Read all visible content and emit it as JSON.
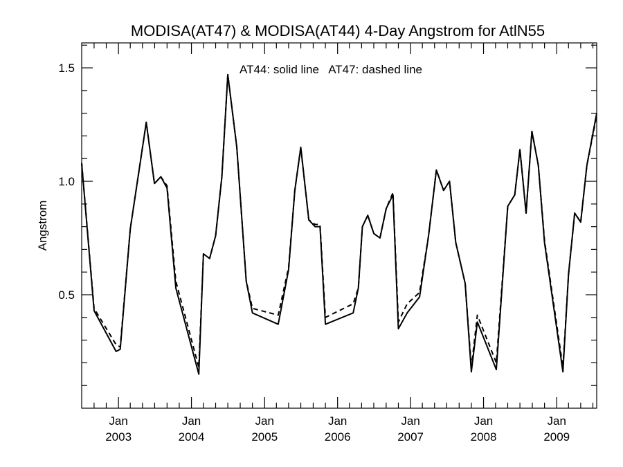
{
  "chart_data": {
    "type": "line",
    "title": "MODISA(AT47) & MODISA(AT44) 4-Day Angstrom for AtlN55",
    "annotation": "AT44: solid line   AT47: dashed line",
    "xlabel": "",
    "ylabel": "Angstrom",
    "ylim": [
      0.0,
      1.61
    ],
    "xlim": [
      "2002-07-01",
      "2009-07-20"
    ],
    "grid": false,
    "yticks": [
      {
        "value": 0.5,
        "label": "0.5"
      },
      {
        "value": 1.0,
        "label": "1.0"
      },
      {
        "value": 1.5,
        "label": "1.5"
      }
    ],
    "y_minor_ticks": [
      0.1,
      0.2,
      0.3,
      0.4,
      0.6,
      0.7,
      0.8,
      0.9,
      1.1,
      1.2,
      1.3,
      1.4,
      1.6
    ],
    "xticks": [
      {
        "date": "2003-01-01",
        "month": "Jan",
        "year": "2003"
      },
      {
        "date": "2004-01-01",
        "month": "Jan",
        "year": "2004"
      },
      {
        "date": "2005-01-01",
        "month": "Jan",
        "year": "2005"
      },
      {
        "date": "2006-01-01",
        "month": "Jan",
        "year": "2006"
      },
      {
        "date": "2007-01-01",
        "month": "Jan",
        "year": "2007"
      },
      {
        "date": "2008-01-01",
        "month": "Jan",
        "year": "2008"
      },
      {
        "date": "2009-01-01",
        "month": "Jan",
        "year": "2009"
      }
    ],
    "x_minor_ticks": [
      "2002-09-01",
      "2002-11-01",
      "2003-03-01",
      "2003-05-01",
      "2003-07-01",
      "2003-09-01",
      "2003-11-01",
      "2004-03-01",
      "2004-05-01",
      "2004-07-01",
      "2004-09-01",
      "2004-11-01",
      "2005-03-01",
      "2005-05-01",
      "2005-07-01",
      "2005-09-01",
      "2005-11-01",
      "2006-03-01",
      "2006-05-01",
      "2006-07-01",
      "2006-09-01",
      "2006-11-01",
      "2007-03-01",
      "2007-05-01",
      "2007-07-01",
      "2007-09-01",
      "2007-11-01",
      "2008-03-01",
      "2008-05-01",
      "2008-07-01",
      "2008-09-01",
      "2008-11-01",
      "2009-03-01",
      "2009-05-01",
      "2009-07-01"
    ],
    "series": [
      {
        "name": "AT44",
        "style": "solid",
        "points": [
          [
            "2002-07-01",
            1.08
          ],
          [
            "2002-09-01",
            0.43
          ],
          [
            "2002-12-20",
            0.25
          ],
          [
            "2003-01-10",
            0.26
          ],
          [
            "2003-03-01",
            0.79
          ],
          [
            "2003-05-20",
            1.26
          ],
          [
            "2003-06-30",
            0.99
          ],
          [
            "2003-08-01",
            1.02
          ],
          [
            "2003-09-01",
            0.97
          ],
          [
            "2003-10-15",
            0.53
          ],
          [
            "2004-02-07",
            0.15
          ],
          [
            "2004-03-01",
            0.68
          ],
          [
            "2004-04-01",
            0.66
          ],
          [
            "2004-05-01",
            0.76
          ],
          [
            "2004-06-01",
            1.02
          ],
          [
            "2004-07-01",
            1.47
          ],
          [
            "2004-08-15",
            1.15
          ],
          [
            "2004-10-01",
            0.56
          ],
          [
            "2004-11-01",
            0.42
          ],
          [
            "2005-03-10",
            0.37
          ],
          [
            "2005-05-01",
            0.61
          ],
          [
            "2005-06-01",
            0.96
          ],
          [
            "2005-07-01",
            1.15
          ],
          [
            "2005-08-10",
            0.83
          ],
          [
            "2005-09-10",
            0.8
          ],
          [
            "2005-10-05",
            0.8
          ],
          [
            "2005-11-01",
            0.37
          ],
          [
            "2006-03-20",
            0.42
          ],
          [
            "2006-04-15",
            0.53
          ],
          [
            "2006-05-05",
            0.8
          ],
          [
            "2006-06-01",
            0.85
          ],
          [
            "2006-07-01",
            0.77
          ],
          [
            "2006-08-01",
            0.75
          ],
          [
            "2006-09-01",
            0.88
          ],
          [
            "2006-10-05",
            0.94
          ],
          [
            "2006-11-01",
            0.35
          ],
          [
            "2006-12-15",
            0.42
          ],
          [
            "2007-02-15",
            0.49
          ],
          [
            "2007-04-01",
            0.76
          ],
          [
            "2007-05-10",
            1.05
          ],
          [
            "2007-06-15",
            0.96
          ],
          [
            "2007-07-15",
            1.0
          ],
          [
            "2007-08-15",
            0.73
          ],
          [
            "2007-10-01",
            0.55
          ],
          [
            "2007-11-01",
            0.16
          ],
          [
            "2007-12-01",
            0.38
          ],
          [
            "2008-03-05",
            0.17
          ],
          [
            "2008-05-01",
            0.89
          ],
          [
            "2008-06-05",
            0.94
          ],
          [
            "2008-07-01",
            1.14
          ],
          [
            "2008-08-01",
            0.86
          ],
          [
            "2008-08-30",
            1.22
          ],
          [
            "2008-10-01",
            1.07
          ],
          [
            "2008-11-01",
            0.73
          ],
          [
            "2009-02-01",
            0.16
          ],
          [
            "2009-03-01",
            0.59
          ],
          [
            "2009-04-01",
            0.86
          ],
          [
            "2009-05-01",
            0.82
          ],
          [
            "2009-06-01",
            1.07
          ],
          [
            "2009-07-20",
            1.3
          ]
        ]
      },
      {
        "name": "AT47",
        "style": "dashed",
        "points": [
          [
            "2002-07-01",
            1.08
          ],
          [
            "2002-09-01",
            0.44
          ],
          [
            "2002-12-20",
            0.28
          ],
          [
            "2003-01-10",
            0.27
          ],
          [
            "2003-03-01",
            0.79
          ],
          [
            "2003-05-20",
            1.26
          ],
          [
            "2003-06-30",
            0.99
          ],
          [
            "2003-08-01",
            1.02
          ],
          [
            "2003-09-01",
            0.98
          ],
          [
            "2003-10-15",
            0.56
          ],
          [
            "2004-02-07",
            0.18
          ],
          [
            "2004-03-01",
            0.68
          ],
          [
            "2004-04-01",
            0.66
          ],
          [
            "2004-05-01",
            0.76
          ],
          [
            "2004-06-01",
            1.02
          ],
          [
            "2004-07-01",
            1.47
          ],
          [
            "2004-08-15",
            1.15
          ],
          [
            "2004-10-01",
            0.56
          ],
          [
            "2004-11-01",
            0.44
          ],
          [
            "2005-03-10",
            0.41
          ],
          [
            "2005-05-01",
            0.62
          ],
          [
            "2005-06-01",
            0.96
          ],
          [
            "2005-07-01",
            1.15
          ],
          [
            "2005-08-10",
            0.83
          ],
          [
            "2005-09-10",
            0.81
          ],
          [
            "2005-10-05",
            0.81
          ],
          [
            "2005-11-01",
            0.4
          ],
          [
            "2006-03-20",
            0.46
          ],
          [
            "2006-04-15",
            0.53
          ],
          [
            "2006-05-05",
            0.8
          ],
          [
            "2006-06-01",
            0.85
          ],
          [
            "2006-07-01",
            0.77
          ],
          [
            "2006-08-01",
            0.75
          ],
          [
            "2006-09-01",
            0.88
          ],
          [
            "2006-10-05",
            0.95
          ],
          [
            "2006-11-01",
            0.38
          ],
          [
            "2006-12-15",
            0.46
          ],
          [
            "2007-02-15",
            0.51
          ],
          [
            "2007-04-01",
            0.76
          ],
          [
            "2007-05-10",
            1.05
          ],
          [
            "2007-06-15",
            0.96
          ],
          [
            "2007-07-15",
            1.0
          ],
          [
            "2007-08-15",
            0.73
          ],
          [
            "2007-10-01",
            0.55
          ],
          [
            "2007-11-01",
            0.18
          ],
          [
            "2007-12-01",
            0.41
          ],
          [
            "2008-03-05",
            0.2
          ],
          [
            "2008-05-01",
            0.89
          ],
          [
            "2008-06-05",
            0.94
          ],
          [
            "2008-07-01",
            1.14
          ],
          [
            "2008-08-01",
            0.86
          ],
          [
            "2008-08-30",
            1.22
          ],
          [
            "2008-10-01",
            1.07
          ],
          [
            "2008-11-01",
            0.74
          ],
          [
            "2009-02-01",
            0.18
          ],
          [
            "2009-03-01",
            0.59
          ],
          [
            "2009-04-01",
            0.86
          ],
          [
            "2009-05-01",
            0.82
          ],
          [
            "2009-06-01",
            1.07
          ],
          [
            "2009-07-20",
            1.29
          ]
        ]
      }
    ]
  }
}
